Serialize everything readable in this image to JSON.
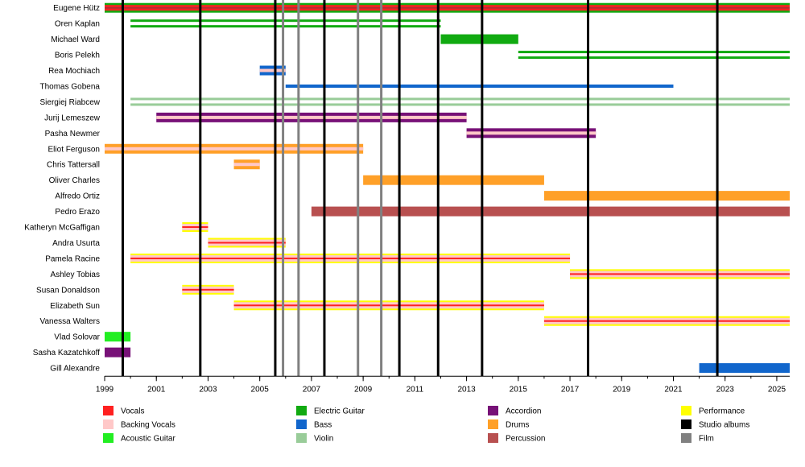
{
  "chart_data": {
    "type": "timeline",
    "title": "",
    "x_range": [
      1999,
      2025.5
    ],
    "x_ticks": [
      "1999",
      "2001",
      "2003",
      "2005",
      "2007",
      "2009",
      "2011",
      "2013",
      "2015",
      "2017",
      "2019",
      "2021",
      "2023",
      "2025"
    ],
    "x_tick_values": [
      1999,
      2001,
      2003,
      2005,
      2007,
      2009,
      2011,
      2013,
      2015,
      2017,
      2019,
      2021,
      2023,
      2025
    ],
    "categories": [
      {
        "key": "vocals",
        "label": "Vocals",
        "color": "#ff2020"
      },
      {
        "key": "backing",
        "label": "Backing Vocals",
        "color": "#ffc8c8"
      },
      {
        "key": "acoustic",
        "label": "Acoustic Guitar",
        "color": "#22ee22"
      },
      {
        "key": "electric",
        "label": "Electric Guitar",
        "color": "#11aa11"
      },
      {
        "key": "bass",
        "label": "Bass",
        "color": "#1166cc"
      },
      {
        "key": "violin",
        "label": "Violin",
        "color": "#99cc99"
      },
      {
        "key": "accordion",
        "label": "Accordion",
        "color": "#771177"
      },
      {
        "key": "drums",
        "label": "Drums",
        "color": "#ffa028"
      },
      {
        "key": "percussion",
        "label": "Percussion",
        "color": "#b85050"
      },
      {
        "key": "performance",
        "label": "Performance",
        "color": "#ffff00"
      },
      {
        "key": "studio",
        "label": "Studio albums",
        "color": "#000000"
      },
      {
        "key": "film",
        "label": "Film",
        "color": "#808080"
      }
    ],
    "members": [
      {
        "name": "Eugene Hütz",
        "bars": [
          {
            "start": 1999,
            "end": 2025.5,
            "main": "vocals",
            "stripe": "electric",
            "style": "outlined"
          }
        ]
      },
      {
        "name": "Oren Kaplan",
        "bars": [
          {
            "start": 2000,
            "end": 2012,
            "main": "electric",
            "stripe": "",
            "style": "double"
          }
        ]
      },
      {
        "name": "Michael Ward",
        "bars": [
          {
            "start": 2012,
            "end": 2015,
            "main": "electric",
            "stripe": "",
            "style": "solid"
          }
        ]
      },
      {
        "name": "Boris Pelekh",
        "bars": [
          {
            "start": 2015,
            "end": 2025.5,
            "main": "electric",
            "stripe": "",
            "style": "double"
          }
        ]
      },
      {
        "name": "Rea Mochiach",
        "bars": [
          {
            "start": 2005,
            "end": 2006,
            "main": "bass",
            "stripe": "backing",
            "style": "striped"
          }
        ]
      },
      {
        "name": "Thomas Gobena",
        "bars": [
          {
            "start": 2006,
            "end": 2021,
            "main": "bass",
            "stripe": "",
            "style": "thin"
          }
        ]
      },
      {
        "name": "Siergiej Riabcew",
        "bars": [
          {
            "start": 2000,
            "end": 2025.5,
            "main": "violin",
            "stripe": "",
            "style": "double"
          }
        ]
      },
      {
        "name": "Jurij Lemeszew",
        "bars": [
          {
            "start": 2001,
            "end": 2013,
            "main": "accordion",
            "stripe": "backing",
            "style": "striped"
          }
        ]
      },
      {
        "name": "Pasha Newmer",
        "bars": [
          {
            "start": 2013,
            "end": 2018,
            "main": "accordion",
            "stripe": "backing",
            "style": "striped"
          }
        ]
      },
      {
        "name": "Eliot Ferguson",
        "bars": [
          {
            "start": 1999,
            "end": 2009,
            "main": "drums",
            "stripe": "backing",
            "style": "striped"
          }
        ]
      },
      {
        "name": "Chris Tattersall",
        "bars": [
          {
            "start": 2004,
            "end": 2005,
            "main": "drums",
            "stripe": "backing",
            "style": "striped"
          }
        ]
      },
      {
        "name": "Oliver Charles",
        "bars": [
          {
            "start": 2009,
            "end": 2016,
            "main": "drums",
            "stripe": "",
            "style": "solid"
          }
        ]
      },
      {
        "name": "Alfredo Ortiz",
        "bars": [
          {
            "start": 2016,
            "end": 2025.5,
            "main": "drums",
            "stripe": "",
            "style": "solid"
          }
        ]
      },
      {
        "name": "Pedro Erazo",
        "bars": [
          {
            "start": 2007,
            "end": 2025.5,
            "main": "percussion",
            "stripe": "",
            "style": "solid"
          }
        ]
      },
      {
        "name": "Katheryn McGaffigan",
        "bars": [
          {
            "start": 2002,
            "end": 2003,
            "main": "performance",
            "stripe": "vocals",
            "style": "perf"
          }
        ]
      },
      {
        "name": "Andra Usurta",
        "bars": [
          {
            "start": 2003,
            "end": 2006,
            "main": "performance",
            "stripe": "vocals",
            "style": "perf"
          }
        ]
      },
      {
        "name": "Pamela Racine",
        "bars": [
          {
            "start": 2000,
            "end": 2017,
            "main": "performance",
            "stripe": "vocals",
            "style": "perf"
          }
        ]
      },
      {
        "name": "Ashley Tobias",
        "bars": [
          {
            "start": 2017,
            "end": 2025.5,
            "main": "performance",
            "stripe": "vocals",
            "style": "perf"
          }
        ]
      },
      {
        "name": "Susan Donaldson",
        "bars": [
          {
            "start": 2002,
            "end": 2004,
            "main": "performance",
            "stripe": "vocals",
            "style": "perf"
          }
        ]
      },
      {
        "name": "Elizabeth Sun",
        "bars": [
          {
            "start": 2004,
            "end": 2016,
            "main": "performance",
            "stripe": "vocals",
            "style": "perf"
          }
        ]
      },
      {
        "name": "Vanessa Walters",
        "bars": [
          {
            "start": 2016,
            "end": 2025.5,
            "main": "performance",
            "stripe": "vocals",
            "style": "perf"
          }
        ]
      },
      {
        "name": "Vlad Solovar",
        "bars": [
          {
            "start": 1999,
            "end": 2000,
            "main": "acoustic",
            "stripe": "",
            "style": "solid"
          }
        ]
      },
      {
        "name": "Sasha Kazatchkoff",
        "bars": [
          {
            "start": 1999,
            "end": 2000,
            "main": "accordion",
            "stripe": "",
            "style": "solid"
          }
        ]
      },
      {
        "name": "Gill Alexandre",
        "bars": [
          {
            "start": 2022,
            "end": 2025.5,
            "main": "bass",
            "stripe": "",
            "style": "solid"
          }
        ]
      }
    ],
    "studio_albums": [
      1999.7,
      2002.7,
      2005.6,
      2007.5,
      2010.4,
      2011.9,
      2013.6,
      2017.7,
      2022.7
    ],
    "films": [
      2005.9,
      2006.5,
      2008.8,
      2009.7
    ],
    "legend_position": "bottom"
  }
}
